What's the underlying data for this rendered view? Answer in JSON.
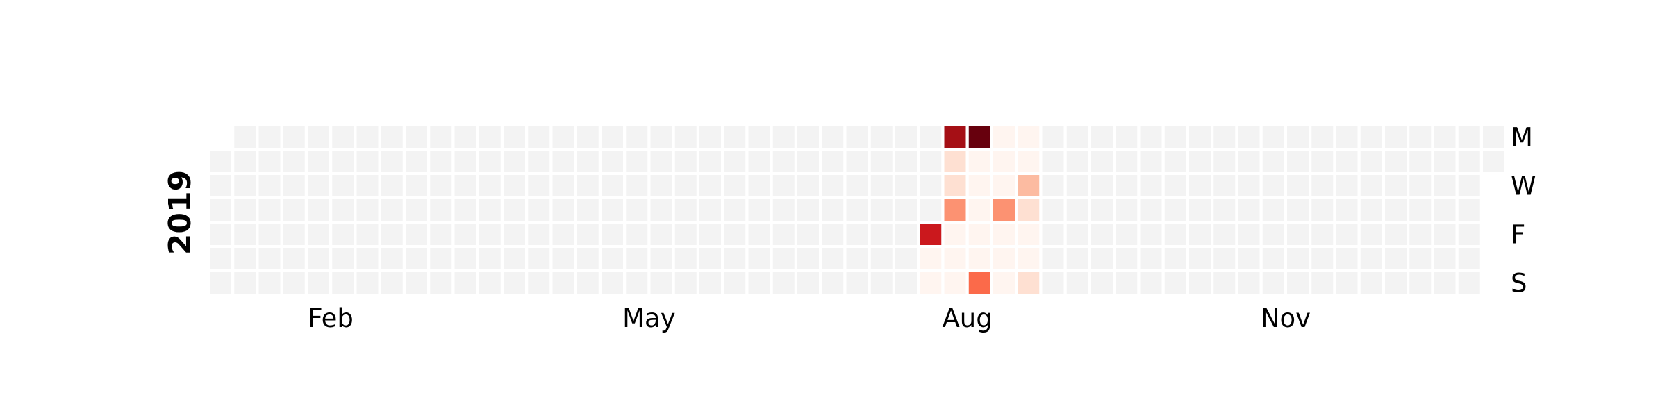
{
  "chart_data": {
    "type": "heatmap",
    "title": "",
    "year": "2019",
    "month_labels": [
      "Feb",
      "May",
      "Aug",
      "Nov"
    ],
    "day_labels": [
      "M",
      "W",
      "F",
      "S"
    ],
    "grid": {
      "weeks": 53,
      "days": 7,
      "first_day_row": 1,
      "total_days": 365
    },
    "colors": {
      "empty": "#f3f3f3",
      "border": "#ffffff",
      "scale": [
        "#fff5f0",
        "#fee0d2",
        "#fcbba1",
        "#fc9272",
        "#fb6a4a",
        "#ef3b2c",
        "#cb181d",
        "#a50f15",
        "#67000d"
      ]
    },
    "values": [
      {
        "date": "2019-07-26",
        "level": 7
      },
      {
        "date": "2019-07-27",
        "level": 1
      },
      {
        "date": "2019-07-28",
        "level": 1
      },
      {
        "date": "2019-07-29",
        "level": 8
      },
      {
        "date": "2019-07-30",
        "level": 2
      },
      {
        "date": "2019-07-31",
        "level": 2
      },
      {
        "date": "2019-08-01",
        "level": 4
      },
      {
        "date": "2019-08-02",
        "level": 1
      },
      {
        "date": "2019-08-03",
        "level": 1
      },
      {
        "date": "2019-08-04",
        "level": 1
      },
      {
        "date": "2019-08-05",
        "level": 9
      },
      {
        "date": "2019-08-06",
        "level": 1
      },
      {
        "date": "2019-08-07",
        "level": 1
      },
      {
        "date": "2019-08-08",
        "level": 1
      },
      {
        "date": "2019-08-09",
        "level": 1
      },
      {
        "date": "2019-08-10",
        "level": 1
      },
      {
        "date": "2019-08-11",
        "level": 5
      },
      {
        "date": "2019-08-12",
        "level": 1
      },
      {
        "date": "2019-08-13",
        "level": 1
      },
      {
        "date": "2019-08-14",
        "level": 1
      },
      {
        "date": "2019-08-15",
        "level": 4
      },
      {
        "date": "2019-08-16",
        "level": 1
      },
      {
        "date": "2019-08-17",
        "level": 1
      },
      {
        "date": "2019-08-18",
        "level": 1
      },
      {
        "date": "2019-08-19",
        "level": 1
      },
      {
        "date": "2019-08-20",
        "level": 1
      },
      {
        "date": "2019-08-21",
        "level": 3
      },
      {
        "date": "2019-08-22",
        "level": 2
      },
      {
        "date": "2019-08-23",
        "level": 1
      },
      {
        "date": "2019-08-24",
        "level": 1
      },
      {
        "date": "2019-08-25",
        "level": 2
      }
    ]
  }
}
